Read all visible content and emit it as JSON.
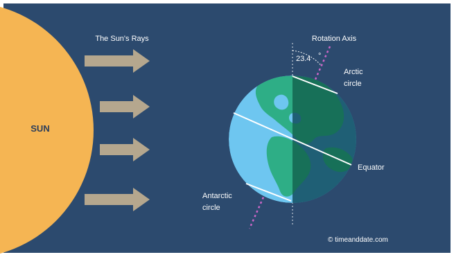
{
  "labels": {
    "sun": "SUN",
    "suns_rays": "The Sun's Rays",
    "rotation_axis": "Rotation Axis",
    "tilt_angle": "23.4",
    "degree_symbol": "°",
    "arctic_line1": "Arctic",
    "arctic_line2": "circle",
    "equator": "Equator",
    "antarctic_line1": "Antarctic",
    "antarctic_line2": "circle",
    "credit": "© timeanddate.com"
  },
  "colors": {
    "background": "#2c4a6e",
    "sun": "#f5b553",
    "arrows": "#b5a78e",
    "ocean_day": "#6ec6f0",
    "ocean_night": "#1f5f75",
    "land_day": "#2eae86",
    "land_night": "#177058",
    "lines": "#ffffff",
    "axis": "#cc66c8"
  },
  "diagram": {
    "ray_count": 4
  }
}
